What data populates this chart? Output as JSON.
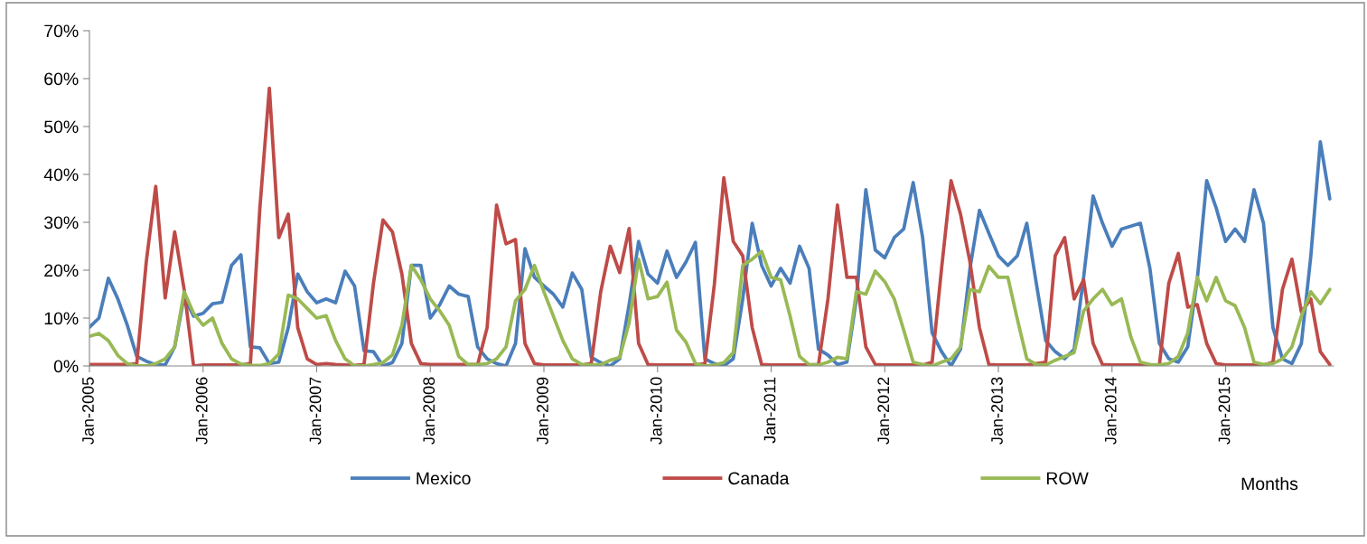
{
  "chart_data": {
    "type": "line",
    "xlabel": "Months",
    "categories": [
      "Jan-2005",
      null,
      null,
      null,
      null,
      null,
      null,
      null,
      null,
      null,
      null,
      null,
      "Jan-2006",
      null,
      null,
      null,
      null,
      null,
      null,
      null,
      null,
      null,
      null,
      null,
      "Jan-2007",
      null,
      null,
      null,
      null,
      null,
      null,
      null,
      null,
      null,
      null,
      null,
      "Jan-2008",
      null,
      null,
      null,
      null,
      null,
      null,
      null,
      null,
      null,
      null,
      null,
      "Jan-2009",
      null,
      null,
      null,
      null,
      null,
      null,
      null,
      null,
      null,
      null,
      null,
      "Jan-2010",
      null,
      null,
      null,
      null,
      null,
      null,
      null,
      null,
      null,
      null,
      null,
      "Jan-2011",
      null,
      null,
      null,
      null,
      null,
      null,
      null,
      null,
      null,
      null,
      null,
      "Jan-2012",
      null,
      null,
      null,
      null,
      null,
      null,
      null,
      null,
      null,
      null,
      null,
      "Jan-2013",
      null,
      null,
      null,
      null,
      null,
      null,
      null,
      null,
      null,
      null,
      null,
      "Jan-2014",
      null,
      null,
      null,
      null,
      null,
      null,
      null,
      null,
      null,
      null,
      null,
      "Jan-2015",
      null,
      null,
      null,
      null,
      null,
      null,
      null,
      null,
      null,
      null,
      null
    ],
    "series": [
      {
        "name": "Mexico",
        "color": "#4a7ebb",
        "values": [
          8.1,
          10,
          18.3,
          14,
          8.5,
          2,
          1,
          0.3,
          0.2,
          4,
          14.5,
          10.4,
          11,
          13,
          13.3,
          21,
          23.2,
          4,
          3.8,
          0.5,
          0.8,
          8,
          19.2,
          15.5,
          13.2,
          14,
          13.2,
          19.8,
          16.7,
          3.2,
          3,
          0,
          0.7,
          4.7,
          21,
          21,
          10,
          12.8,
          16.7,
          15,
          14.5,
          4,
          1.5,
          0.5,
          0,
          4.7,
          24.5,
          18.5,
          16.7,
          15,
          12.3,
          19.4,
          16,
          1.8,
          0.7,
          0,
          1.5,
          12.8,
          26,
          19.2,
          17.3,
          24,
          18.5,
          21.7,
          25.8,
          1.5,
          0.5,
          0,
          1.5,
          14,
          29.8,
          21,
          16.7,
          20.4,
          17.3,
          25,
          20.4,
          3.5,
          2.3,
          0.3,
          0.8,
          14,
          36.8,
          24.2,
          22.6,
          26.8,
          28.6,
          38.3,
          26.8,
          6.9,
          3,
          0,
          3.5,
          20.4,
          32.5,
          27.7,
          23,
          21,
          23,
          29.8,
          17.3,
          5.3,
          3,
          1.5,
          3.5,
          18.5,
          35.5,
          29.8,
          25,
          28.6,
          29.2,
          29.8,
          20.4,
          4.7,
          1.5,
          0.8,
          4,
          18,
          38.7,
          33,
          26,
          28.6,
          26,
          36.8,
          29.8,
          8,
          1.5,
          0.5,
          4.7,
          23,
          46.8,
          34.9
        ]
      },
      {
        "name": "Canada",
        "color": "#be4b48",
        "values": [
          0.3,
          0.3,
          0.3,
          0.3,
          0.3,
          0.5,
          21.7,
          37.5,
          14.2,
          28,
          16,
          0,
          0.2,
          0.2,
          0.2,
          0.2,
          0.2,
          0.5,
          33,
          58,
          26.8,
          31.7,
          8,
          1.5,
          0.3,
          0.5,
          0.3,
          0.2,
          0.1,
          0.3,
          17.3,
          30.5,
          28,
          19.2,
          4.7,
          0.5,
          0.3,
          0.3,
          0.3,
          0.3,
          0.3,
          0.3,
          8,
          33.6,
          25.5,
          26.4,
          4.7,
          0.5,
          0.2,
          0.2,
          0.2,
          0.2,
          0.2,
          0.5,
          15.5,
          25,
          19.5,
          28.7,
          4.7,
          0.3,
          0.2,
          0.2,
          0.2,
          0.2,
          0.2,
          0.5,
          17,
          39.3,
          26,
          23,
          8,
          0.3,
          0.2,
          0.2,
          0.2,
          0.2,
          0.2,
          0.3,
          14,
          33.6,
          18.5,
          18.5,
          4,
          0.3,
          0.2,
          0.2,
          0.2,
          0.2,
          0.2,
          0.8,
          20.4,
          38.7,
          31.7,
          21.7,
          8,
          0.3,
          0.2,
          0.2,
          0.2,
          0.2,
          0.5,
          0.8,
          23,
          26.8,
          14,
          18,
          4.7,
          0.3,
          0.2,
          0.2,
          0.2,
          0.2,
          0.2,
          0.2,
          17.3,
          23.5,
          12.3,
          12.8,
          4.7,
          0.5,
          0.2,
          0.2,
          0.2,
          0.2,
          0.2,
          0.8,
          16,
          22.3,
          11.3,
          14,
          3,
          0.3
        ]
      },
      {
        "name": "ROW",
        "color": "#98b954",
        "values": [
          6.2,
          6.8,
          5.3,
          2.2,
          0.5,
          0,
          0,
          0.5,
          1.5,
          4,
          15.5,
          11,
          8.5,
          10,
          4.7,
          1.5,
          0.4,
          0.1,
          0.1,
          0.5,
          2.5,
          14.8,
          14,
          12,
          10,
          10.5,
          5.3,
          1.5,
          0,
          0,
          0.3,
          0.7,
          2.3,
          8.5,
          21,
          18,
          14,
          11.5,
          8.5,
          2,
          0.3,
          0.3,
          0.5,
          1.5,
          4,
          13.6,
          16,
          21,
          15.5,
          10.4,
          5.3,
          1.5,
          0.3,
          0.2,
          0.3,
          1.2,
          1.8,
          9,
          22.3,
          14,
          14.5,
          17.5,
          7.5,
          5,
          0.5,
          0,
          0.2,
          0.7,
          2.8,
          21,
          22.3,
          23.9,
          18.5,
          18,
          10.4,
          2,
          0.3,
          0.2,
          0.8,
          1.8,
          1.5,
          15.5,
          15,
          19.8,
          17.6,
          14,
          7.5,
          0.8,
          0.3,
          0,
          0.8,
          1.5,
          4,
          16,
          15.5,
          20.8,
          18.5,
          18.5,
          9.8,
          1.5,
          0.3,
          0.2,
          1.2,
          2,
          2.8,
          11.5,
          14,
          16,
          12.8,
          14,
          6,
          0.8,
          0.3,
          0.2,
          0.5,
          2,
          6.9,
          18.5,
          13.6,
          18.5,
          13.6,
          12.6,
          8,
          0.8,
          0.3,
          0.5,
          1.5,
          4,
          10.4,
          15.5,
          13,
          16
        ]
      }
    ],
    "ylim": [
      0,
      70
    ],
    "yticks": [
      {
        "value": 0,
        "label": "0%"
      },
      {
        "value": 10,
        "label": "10%"
      },
      {
        "value": 20,
        "label": "20%"
      },
      {
        "value": 30,
        "label": "30%"
      },
      {
        "value": 40,
        "label": "40%"
      },
      {
        "value": 50,
        "label": "50%"
      },
      {
        "value": 60,
        "label": "60%"
      },
      {
        "value": 70,
        "label": "70%"
      }
    ],
    "grid": false,
    "legend": "bottom",
    "marker": "none",
    "line_style": "solid"
  }
}
